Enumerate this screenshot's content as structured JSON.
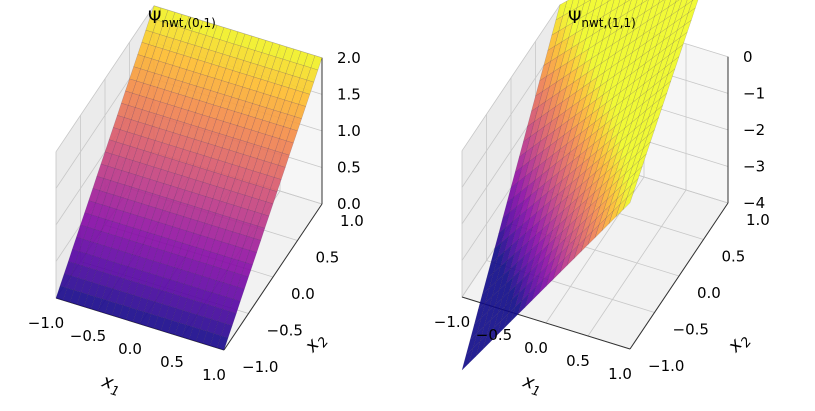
{
  "chart_data": [
    {
      "type": "surface3d",
      "title_main": "Ψ",
      "title_sub": "nwt,(0,1)",
      "xlabel_main": "x",
      "xlabel_sub": "1",
      "ylabel_main": "x",
      "ylabel_sub": "2",
      "xlim": [
        -1.0,
        1.0
      ],
      "ylim": [
        -1.0,
        1.0
      ],
      "zlim": [
        0.0,
        2.0
      ],
      "x_ticks": [
        "−1.0",
        "−0.5",
        "0.0",
        "0.5",
        "1.0"
      ],
      "y_ticks": [
        "−1.0",
        "−0.5",
        "0.0",
        "0.5",
        "1.0"
      ],
      "z_ticks": [
        "0.0",
        "0.5",
        "1.0",
        "1.5",
        "2.0"
      ],
      "function": "z = 1 + x2",
      "colormap": "plasma"
    },
    {
      "type": "surface3d",
      "title_main": "Ψ",
      "title_sub": "nwt,(1,1)",
      "xlabel_main": "x",
      "xlabel_sub": "1",
      "ylabel_main": "x",
      "ylabel_sub": "2",
      "xlim": [
        -1.0,
        1.0
      ],
      "ylim": [
        -1.0,
        1.0
      ],
      "zlim": [
        -4.0,
        0.0
      ],
      "x_ticks": [
        "−1.0",
        "−0.5",
        "0.0",
        "0.5",
        "1.0"
      ],
      "y_ticks": [
        "−1.0",
        "−0.5",
        "0.0",
        "0.5",
        "1.0"
      ],
      "z_ticks": [
        "−4",
        "−3",
        "−2",
        "−1",
        "0"
      ],
      "function": "z = (1 + x1)(1 + x2) − 1.5 (1 − x1)(1 − x2)",
      "colormap": "plasma"
    }
  ]
}
